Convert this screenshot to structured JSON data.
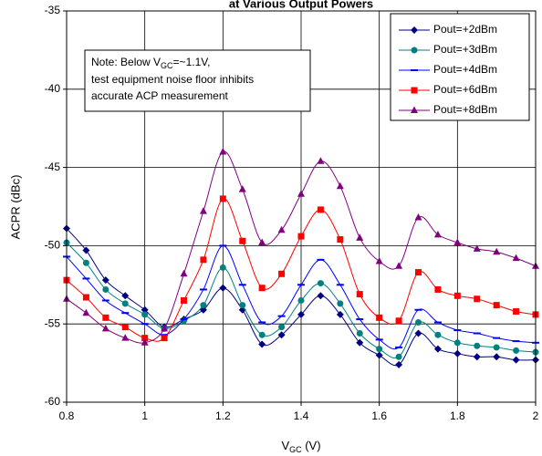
{
  "chart_data": {
    "type": "line",
    "title": "at Various Output Powers",
    "xlabel": {
      "main": "V",
      "sub": "GC",
      "tail": " (V)"
    },
    "ylabel": "ACPR (dBc)",
    "note": {
      "line1": {
        "main": "Note: Below V",
        "sub": "GC",
        "tail": "=~1.1V,"
      },
      "line2": "test equipment noise floor inhibits",
      "line3": "accurate ACP measurement"
    },
    "x": [
      0.8,
      0.85,
      0.9,
      0.95,
      1.0,
      1.05,
      1.1,
      1.15,
      1.2,
      1.25,
      1.3,
      1.35,
      1.4,
      1.45,
      1.5,
      1.55,
      1.6,
      1.65,
      1.7,
      1.75,
      1.8,
      1.85,
      1.9,
      1.95,
      2.0
    ],
    "series": [
      {
        "name": "Pout=+2dBm",
        "color": "#000080",
        "marker": "diamond",
        "values": [
          -48.9,
          -50.3,
          -52.2,
          -53.2,
          -54.1,
          -55.2,
          -54.7,
          -54.1,
          -52.7,
          -54.1,
          -56.3,
          -55.7,
          -54.4,
          -53.2,
          -54.4,
          -56.2,
          -57.0,
          -57.6,
          -55.6,
          -56.6,
          -56.9,
          -57.1,
          -57.1,
          -57.3,
          -57.3
        ]
      },
      {
        "name": "Pout=+3dBm",
        "color": "#008080",
        "marker": "circle",
        "values": [
          -49.8,
          -51.1,
          -52.8,
          -53.7,
          -54.4,
          -55.3,
          -54.8,
          -53.8,
          -51.4,
          -53.8,
          -55.7,
          -55.2,
          -53.5,
          -52.4,
          -53.7,
          -55.6,
          -56.6,
          -57.1,
          -54.9,
          -55.7,
          -56.2,
          -56.4,
          -56.5,
          -56.7,
          -56.8
        ]
      },
      {
        "name": "Pout=+4dBm",
        "color": "#0000ff",
        "marker": "dash",
        "values": [
          -50.7,
          -52.1,
          -53.5,
          -54.3,
          -55.0,
          -55.7,
          -54.7,
          -52.8,
          -50.0,
          -52.5,
          -54.9,
          -54.5,
          -52.5,
          -50.9,
          -52.5,
          -54.7,
          -56.0,
          -56.5,
          -54.1,
          -54.9,
          -55.4,
          -55.6,
          -55.9,
          -56.1,
          -56.2
        ]
      },
      {
        "name": "Pout=+6dBm",
        "color": "#ff0000",
        "marker": "square",
        "values": [
          -52.2,
          -53.3,
          -54.6,
          -55.2,
          -55.9,
          -55.9,
          -53.5,
          -50.9,
          -47.0,
          -49.7,
          -52.7,
          -51.8,
          -49.4,
          -47.7,
          -49.6,
          -53.1,
          -54.6,
          -54.8,
          -51.7,
          -52.8,
          -53.2,
          -53.4,
          -53.8,
          -54.2,
          -54.4
        ]
      },
      {
        "name": "Pout=+8dBm",
        "color": "#800080",
        "marker": "triangle",
        "values": [
          -53.4,
          -54.3,
          -55.3,
          -55.9,
          -56.2,
          -55.3,
          -51.8,
          -47.8,
          -44.0,
          -46.4,
          -49.8,
          -49.0,
          -46.7,
          -44.6,
          -46.2,
          -49.5,
          -51.0,
          -51.3,
          -48.2,
          -49.3,
          -49.8,
          -50.2,
          -50.4,
          -50.8,
          -51.3
        ]
      }
    ],
    "xlim": [
      0.8,
      2
    ],
    "xticks": [
      0.8,
      1,
      1.2,
      1.4,
      1.6,
      1.8,
      2
    ],
    "ylim": [
      -60,
      -35
    ],
    "yticks": [
      -35,
      -40,
      -45,
      -50,
      -55,
      -60
    ],
    "grid": true,
    "legend": "top-right"
  }
}
